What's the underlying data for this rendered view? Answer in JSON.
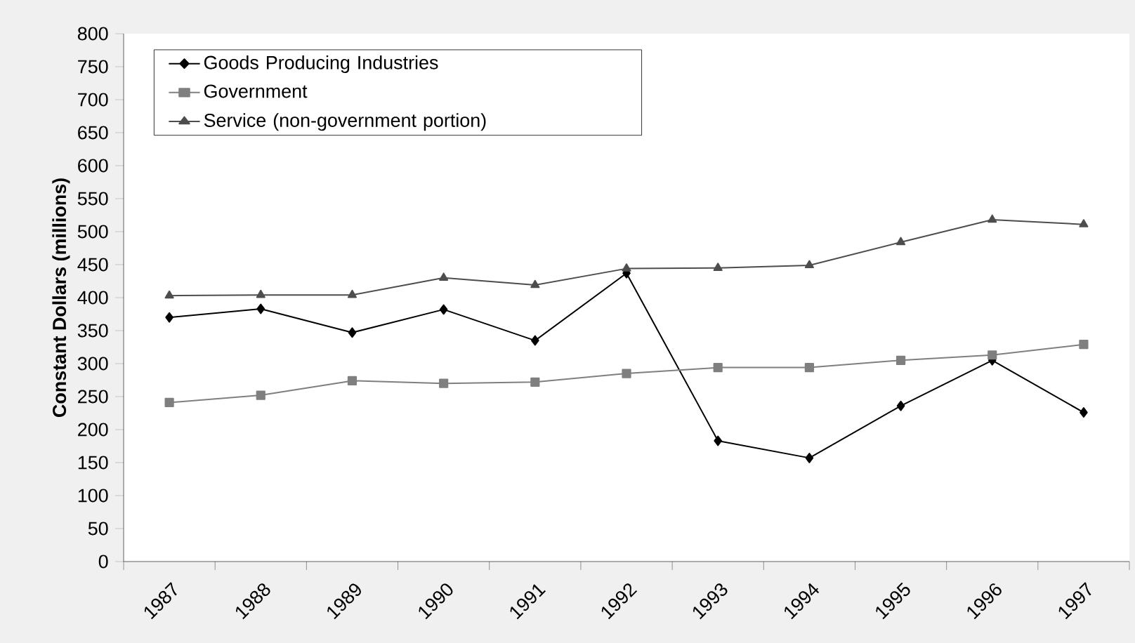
{
  "chart_data": {
    "type": "line",
    "ylabel": "Constant Dollars (millions)",
    "categories": [
      "1987",
      "1988",
      "1989",
      "1990",
      "1991",
      "1992",
      "1993",
      "1994",
      "1995",
      "1996",
      "1997"
    ],
    "series": [
      {
        "name": "Goods Producing Industries",
        "color": "#000000",
        "marker": "diamond",
        "values": [
          370,
          383,
          347,
          382,
          335,
          437,
          183,
          157,
          236,
          305,
          226
        ]
      },
      {
        "name": "Government",
        "color": "#7f7f7f",
        "marker": "square",
        "values": [
          241,
          252,
          274,
          270,
          272,
          285,
          294,
          294,
          305,
          313,
          329
        ]
      },
      {
        "name": "Service (non-government portion)",
        "color": "#4d4d4d",
        "marker": "triangle",
        "values": [
          403,
          404,
          404,
          430,
          419,
          444,
          445,
          449,
          484,
          518,
          511
        ]
      }
    ],
    "ylim": [
      0,
      800
    ],
    "yticks": [
      0,
      50,
      100,
      150,
      200,
      250,
      300,
      350,
      400,
      450,
      500,
      550,
      600,
      650,
      700,
      750,
      800
    ],
    "grid": false,
    "legend": "top left"
  }
}
